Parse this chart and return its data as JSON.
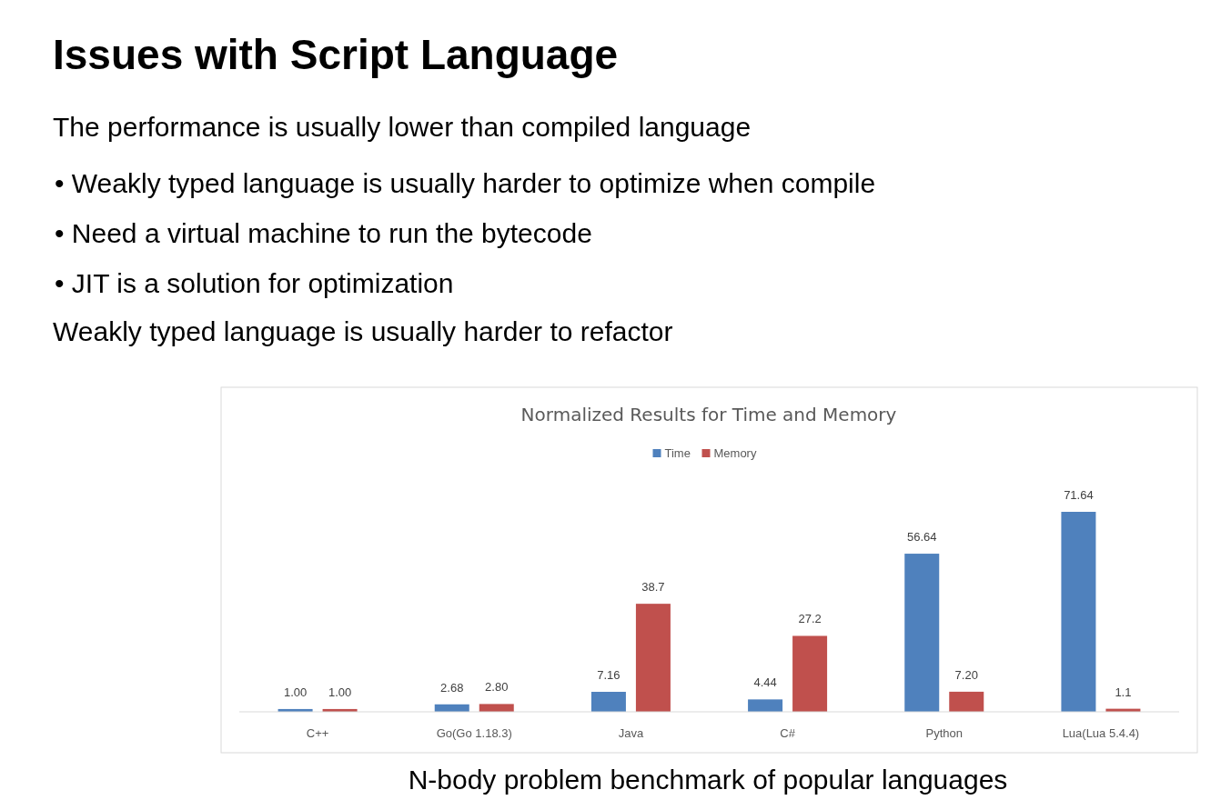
{
  "chart_data": {
    "type": "bar",
    "title": "Normalized Results for Time and Memory",
    "annotations": [
      "Issues with Script Language",
      "The performance is usually lower than compiled language",
      "• Weakly typed language is usually harder to optimize when compile",
      "• Need a virtual machine to run the bytecode",
      "• JIT is a solution for optimization",
      "Weakly typed language is usually harder to refactor",
      "N-body problem benchmark of popular languages"
    ],
    "categories": [
      "C++",
      "Go(Go 1.18.3)",
      "Java",
      "C#",
      "Python",
      "Lua(Lua 5.4.4)"
    ],
    "series": [
      {
        "name": "Time",
        "color": "#4f81bd",
        "values": [
          1.0,
          2.68,
          7.16,
          4.44,
          56.64,
          71.64
        ],
        "value_labels": [
          "1.00",
          "2.68",
          "7.16",
          "4.44",
          "56.64",
          "71.64"
        ]
      },
      {
        "name": "Memory",
        "color": "#c0504d",
        "values": [
          1.0,
          2.8,
          38.7,
          27.2,
          7.2,
          1.1
        ],
        "value_labels": [
          "1.00",
          "2.80",
          "38.7",
          "27.2",
          "7.20",
          "1.1"
        ]
      }
    ],
    "legend": "top",
    "grid": false
  }
}
